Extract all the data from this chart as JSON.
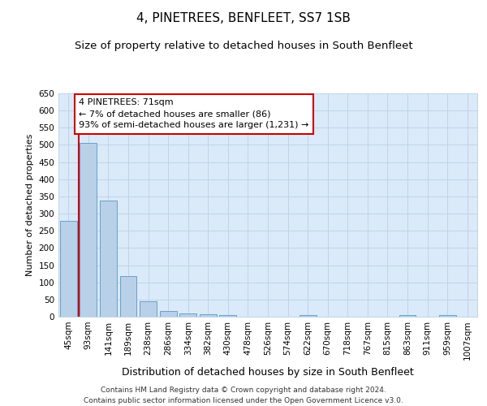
{
  "title": "4, PINETREES, BENFLEET, SS7 1SB",
  "subtitle": "Size of property relative to detached houses in South Benfleet",
  "xlabel": "Distribution of detached houses by size in South Benfleet",
  "ylabel": "Number of detached properties",
  "categories": [
    "45sqm",
    "93sqm",
    "141sqm",
    "189sqm",
    "238sqm",
    "286sqm",
    "334sqm",
    "382sqm",
    "430sqm",
    "478sqm",
    "526sqm",
    "574sqm",
    "622sqm",
    "670sqm",
    "718sqm",
    "767sqm",
    "815sqm",
    "863sqm",
    "911sqm",
    "959sqm",
    "1007sqm"
  ],
  "values": [
    280,
    505,
    338,
    118,
    46,
    16,
    10,
    8,
    5,
    0,
    0,
    0,
    5,
    0,
    0,
    0,
    0,
    5,
    0,
    5,
    0
  ],
  "bar_color": "#b8d0e8",
  "bar_edge_color": "#6aa0cc",
  "grid_color": "#c0d4e8",
  "bg_color": "#daeaf8",
  "property_line_color": "#cc0000",
  "annotation_text": "4 PINETREES: 71sqm\n← 7% of detached houses are smaller (86)\n93% of semi-detached houses are larger (1,231) →",
  "annotation_box_color": "#ffffff",
  "annotation_box_edge": "#cc0000",
  "ylim": [
    0,
    650
  ],
  "yticks": [
    0,
    50,
    100,
    150,
    200,
    250,
    300,
    350,
    400,
    450,
    500,
    550,
    600,
    650
  ],
  "footer": "Contains HM Land Registry data © Crown copyright and database right 2024.\nContains public sector information licensed under the Open Government Licence v3.0.",
  "title_fontsize": 11,
  "subtitle_fontsize": 9.5,
  "xlabel_fontsize": 9,
  "ylabel_fontsize": 8,
  "tick_fontsize": 7.5,
  "annotation_fontsize": 8,
  "footer_fontsize": 6.5
}
